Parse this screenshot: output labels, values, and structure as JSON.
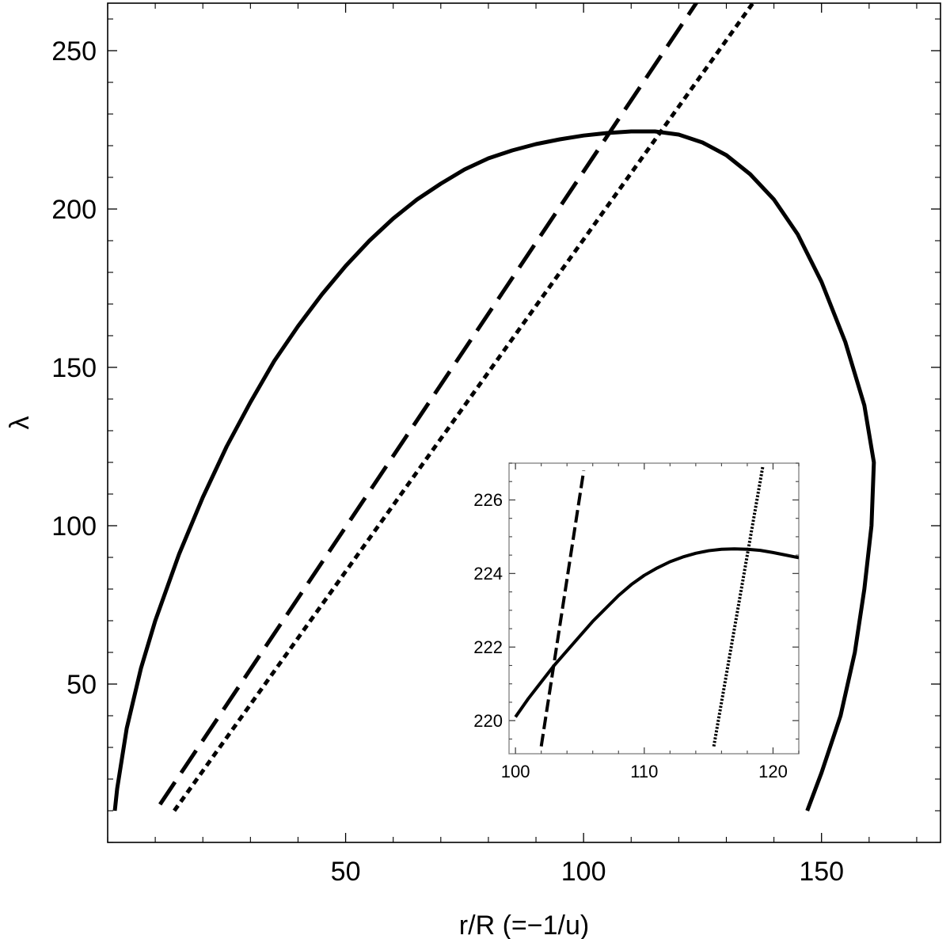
{
  "chart_data": [
    {
      "type": "line",
      "xlabel": "r/R (=−1/u)",
      "ylabel": "λ",
      "xlim": [
        0,
        175
      ],
      "ylim": [
        0,
        265
      ],
      "x_ticks": [
        50,
        100,
        150
      ],
      "y_ticks": [
        50,
        100,
        150,
        200,
        250
      ],
      "grid": false,
      "series": [
        {
          "style": "solid",
          "points": [
            [
              1.5,
              10
            ],
            [
              2,
              17
            ],
            [
              4,
              36
            ],
            [
              7,
              55
            ],
            [
              10,
              70
            ],
            [
              15,
              91
            ],
            [
              20,
              109
            ],
            [
              25,
              125
            ],
            [
              30,
              139
            ],
            [
              35,
              152
            ],
            [
              40,
              163
            ],
            [
              45,
              173
            ],
            [
              50,
              182
            ],
            [
              55,
              190
            ],
            [
              60,
              197
            ],
            [
              65,
              203
            ],
            [
              70,
              208
            ],
            [
              75,
              212.5
            ],
            [
              80,
              216
            ],
            [
              85,
              218.5
            ],
            [
              90,
              220.5
            ],
            [
              95,
              222
            ],
            [
              100,
              223.2
            ],
            [
              105,
              224
            ],
            [
              110,
              224.5
            ],
            [
              115,
              224.5
            ],
            [
              120,
              223.5
            ],
            [
              125,
              221
            ],
            [
              130,
              217
            ],
            [
              135,
              211
            ],
            [
              140,
              203
            ],
            [
              145,
              192
            ],
            [
              150,
              177
            ],
            [
              155,
              158
            ],
            [
              159,
              138
            ],
            [
              161,
              120
            ],
            [
              160.5,
              100
            ],
            [
              159,
              80
            ],
            [
              157,
              60
            ],
            [
              154,
              40
            ],
            [
              150,
              22
            ],
            [
              147,
              10
            ]
          ]
        },
        {
          "style": "dashed",
          "points": [
            [
              11,
              12
            ],
            [
              125,
              268
            ]
          ]
        },
        {
          "style": "dotted",
          "points": [
            [
              14,
              10
            ],
            [
              137,
              268
            ]
          ]
        }
      ]
    },
    {
      "type": "line",
      "inset": true,
      "xlim": [
        99.5,
        122
      ],
      "ylim": [
        219.1,
        227
      ],
      "x_ticks": [
        100,
        110,
        120
      ],
      "y_ticks": [
        220,
        222,
        224,
        226
      ],
      "grid": false,
      "series": [
        {
          "style": "solid",
          "points": [
            [
              100,
              220.1
            ],
            [
              101,
              220.6
            ],
            [
              102,
              221.05
            ],
            [
              103,
              221.5
            ],
            [
              104,
              221.9
            ],
            [
              105,
              222.3
            ],
            [
              106,
              222.7
            ],
            [
              107,
              223.05
            ],
            [
              108,
              223.4
            ],
            [
              109,
              223.7
            ],
            [
              110,
              223.95
            ],
            [
              111,
              224.15
            ],
            [
              112,
              224.32
            ],
            [
              113,
              224.45
            ],
            [
              114,
              224.55
            ],
            [
              115,
              224.62
            ],
            [
              116,
              224.66
            ],
            [
              117,
              224.67
            ],
            [
              118,
              224.66
            ],
            [
              119,
              224.63
            ],
            [
              120,
              224.57
            ],
            [
              121,
              224.5
            ],
            [
              122,
              224.43
            ]
          ]
        },
        {
          "style": "dashed",
          "points": [
            [
              102,
              219.3
            ],
            [
              105.3,
              226.8
            ]
          ]
        },
        {
          "style": "dotted",
          "points": [
            [
              115.4,
              219.3
            ],
            [
              119.2,
              226.9
            ]
          ]
        }
      ]
    }
  ]
}
